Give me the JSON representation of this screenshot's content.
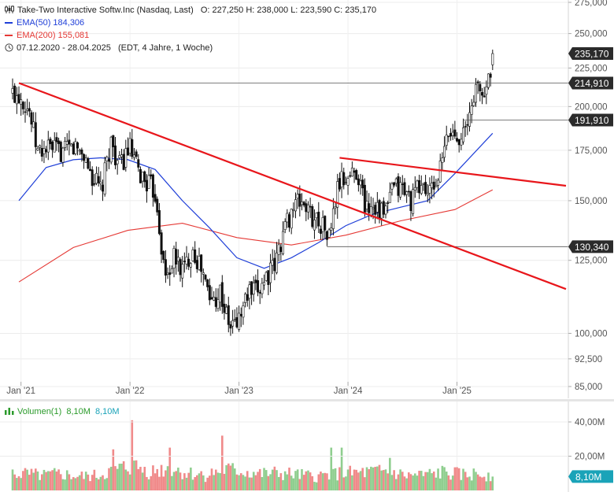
{
  "header": {
    "title": "Take-Two Interactive Softw.Inc (Nasdaq, Last)",
    "ohlc": "O: 227,250   H: 238,000   L: 223,590   C: 235,170",
    "ema50_label": "EMA(50)",
    "ema50_value": "184,306",
    "ema200_label": "EMA(200)",
    "ema200_value": "155,081",
    "range": "07.12.2020 - 28.04.2025",
    "range_info": "(EDT, 4 Jahre, 1 Woche)"
  },
  "volume_header": {
    "label": "Volumen(1)",
    "value1": "8,10M",
    "value2": "8,10M"
  },
  "colors": {
    "ema50": "#1f3fd8",
    "ema200": "#e53935",
    "trendline": "#e8161b",
    "vol_up": "#8fce8f",
    "vol_down": "#f08a8a",
    "price_tag": "#2b2b2b",
    "volume_tag": "#1aa3b8",
    "volume_title": "#2a9a2a"
  },
  "chart_data": [
    {
      "type": "candlestick",
      "title": "Take-Two Interactive Softw.Inc (Nasdaq, Last)",
      "interval": "1 Woche",
      "scale": "log",
      "ylim": [
        82,
        280
      ],
      "x_ticks": [
        "Jan '21",
        "Jan '22",
        "Jan '23",
        "Jan '24",
        "Jan '25"
      ],
      "y_ticks": [
        "275,000",
        "250,000",
        "225,000",
        "200,000",
        "175,000",
        "150,000",
        "125,000",
        "100,000",
        "92,500",
        "85,000"
      ],
      "y_tick_values": [
        275,
        250,
        225,
        200,
        175,
        150,
        125,
        100,
        92.5,
        85
      ],
      "last": {
        "open": 227.25,
        "high": 238.0,
        "low": 223.59,
        "close": 235.17
      },
      "price_tags": [
        {
          "label": "235,170",
          "value": 235.17
        },
        {
          "label": "214,910",
          "value": 214.91
        },
        {
          "label": "191,910",
          "value": 191.91
        },
        {
          "label": "130,340",
          "value": 130.34
        }
      ],
      "horizontal_levels": [
        {
          "value": 214.91,
          "from": "2020-12-28"
        },
        {
          "value": 191.91,
          "from": "2025-01-20"
        },
        {
          "value": 130.34,
          "from": "2023-10-23"
        }
      ],
      "trendlines": [
        {
          "from": {
            "date": "2020-12-28",
            "value": 214.9
          },
          "to": {
            "date": "2025-12-29",
            "value": 114.5
          }
        },
        {
          "from": {
            "date": "2023-12-04",
            "value": 171.0
          },
          "to": {
            "date": "2025-12-29",
            "value": 157.0
          }
        }
      ],
      "monthly_closes": [
        {
          "date": "2020-12-31",
          "value": 208
        },
        {
          "date": "2021-01-31",
          "value": 198
        },
        {
          "date": "2021-02-28",
          "value": 174
        },
        {
          "date": "2021-03-31",
          "value": 176
        },
        {
          "date": "2021-04-30",
          "value": 175
        },
        {
          "date": "2021-05-31",
          "value": 174
        },
        {
          "date": "2021-06-30",
          "value": 177
        },
        {
          "date": "2021-07-31",
          "value": 173
        },
        {
          "date": "2021-08-31",
          "value": 161
        },
        {
          "date": "2021-09-30",
          "value": 154
        },
        {
          "date": "2021-10-31",
          "value": 180
        },
        {
          "date": "2021-11-30",
          "value": 166
        },
        {
          "date": "2021-12-31",
          "value": 177
        },
        {
          "date": "2022-01-31",
          "value": 163
        },
        {
          "date": "2022-02-28",
          "value": 159
        },
        {
          "date": "2022-03-31",
          "value": 153
        },
        {
          "date": "2022-04-30",
          "value": 118
        },
        {
          "date": "2022-05-31",
          "value": 126
        },
        {
          "date": "2022-06-30",
          "value": 121
        },
        {
          "date": "2022-07-31",
          "value": 130
        },
        {
          "date": "2022-08-31",
          "value": 121
        },
        {
          "date": "2022-09-30",
          "value": 110
        },
        {
          "date": "2022-10-31",
          "value": 114
        },
        {
          "date": "2022-11-30",
          "value": 102
        },
        {
          "date": "2022-12-31",
          "value": 104
        },
        {
          "date": "2023-01-31",
          "value": 113
        },
        {
          "date": "2023-02-28",
          "value": 113
        },
        {
          "date": "2023-03-31",
          "value": 119
        },
        {
          "date": "2023-04-30",
          "value": 122
        },
        {
          "date": "2023-05-31",
          "value": 137
        },
        {
          "date": "2023-06-30",
          "value": 147
        },
        {
          "date": "2023-07-31",
          "value": 150
        },
        {
          "date": "2023-08-31",
          "value": 143
        },
        {
          "date": "2023-09-30",
          "value": 141
        },
        {
          "date": "2023-10-31",
          "value": 134
        },
        {
          "date": "2023-11-30",
          "value": 158
        },
        {
          "date": "2023-12-31",
          "value": 161
        },
        {
          "date": "2024-01-31",
          "value": 165
        },
        {
          "date": "2024-02-29",
          "value": 147
        },
        {
          "date": "2024-03-31",
          "value": 149
        },
        {
          "date": "2024-04-30",
          "value": 143
        },
        {
          "date": "2024-05-31",
          "value": 156
        },
        {
          "date": "2024-06-30",
          "value": 156
        },
        {
          "date": "2024-07-31",
          "value": 150
        },
        {
          "date": "2024-08-31",
          "value": 158
        },
        {
          "date": "2024-09-30",
          "value": 153
        },
        {
          "date": "2024-10-31",
          "value": 162
        },
        {
          "date": "2024-11-30",
          "value": 184
        },
        {
          "date": "2024-12-31",
          "value": 184
        },
        {
          "date": "2025-01-31",
          "value": 185
        },
        {
          "date": "2025-02-28",
          "value": 212
        },
        {
          "date": "2025-03-31",
          "value": 207
        },
        {
          "date": "2025-04-30",
          "value": 235.17
        }
      ],
      "series": [
        {
          "name": "EMA(50)",
          "points": [
            {
              "date": "2020-12-28",
              "value": 150
            },
            {
              "date": "2021-03-29",
              "value": 166
            },
            {
              "date": "2021-06-28",
              "value": 170
            },
            {
              "date": "2021-09-27",
              "value": 171
            },
            {
              "date": "2021-12-27",
              "value": 170
            },
            {
              "date": "2022-03-28",
              "value": 165
            },
            {
              "date": "2022-06-27",
              "value": 150
            },
            {
              "date": "2022-09-26",
              "value": 138
            },
            {
              "date": "2022-12-26",
              "value": 126
            },
            {
              "date": "2023-03-27",
              "value": 122
            },
            {
              "date": "2023-06-26",
              "value": 126
            },
            {
              "date": "2023-09-25",
              "value": 132
            },
            {
              "date": "2023-12-25",
              "value": 139
            },
            {
              "date": "2024-03-25",
              "value": 144
            },
            {
              "date": "2024-06-24",
              "value": 147
            },
            {
              "date": "2024-09-23",
              "value": 150
            },
            {
              "date": "2024-12-23",
              "value": 163
            },
            {
              "date": "2025-04-28",
              "value": 184.306
            }
          ]
        },
        {
          "name": "EMA(200)",
          "points": [
            {
              "date": "2020-12-28",
              "value": 117
            },
            {
              "date": "2021-06-28",
              "value": 130
            },
            {
              "date": "2021-12-27",
              "value": 137
            },
            {
              "date": "2022-06-27",
              "value": 140
            },
            {
              "date": "2022-12-26",
              "value": 134
            },
            {
              "date": "2023-06-26",
              "value": 131
            },
            {
              "date": "2023-12-25",
              "value": 135
            },
            {
              "date": "2024-06-24",
              "value": 141
            },
            {
              "date": "2024-12-23",
              "value": 146
            },
            {
              "date": "2025-04-28",
              "value": 155.081
            }
          ]
        }
      ]
    },
    {
      "type": "bar",
      "title": "Volumen(1)",
      "y_ticks": [
        "40,00M",
        "20,00M"
      ],
      "y_tick_values": [
        40,
        20
      ],
      "ylim": [
        0,
        48
      ],
      "last_label": "8,10M",
      "last_value": 8.1,
      "monthly_average_volume_millions": [
        {
          "date": "2021-01",
          "value": 9.5
        },
        {
          "date": "2021-03",
          "value": 8.5
        },
        {
          "date": "2021-05",
          "value": 9.5
        },
        {
          "date": "2021-07",
          "value": 8.0
        },
        {
          "date": "2021-09",
          "value": 8.5
        },
        {
          "date": "2021-11",
          "value": 12.0
        },
        {
          "date": "2022-01",
          "value": 14.0
        },
        {
          "date": "2022-03",
          "value": 11.0
        },
        {
          "date": "2022-05",
          "value": 13.0
        },
        {
          "date": "2022-07",
          "value": 10.0
        },
        {
          "date": "2022-09",
          "value": 9.0
        },
        {
          "date": "2022-11",
          "value": 12.0
        },
        {
          "date": "2023-01",
          "value": 11.0
        },
        {
          "date": "2023-03",
          "value": 9.5
        },
        {
          "date": "2023-05",
          "value": 10.0
        },
        {
          "date": "2023-07",
          "value": 9.0
        },
        {
          "date": "2023-09",
          "value": 8.0
        },
        {
          "date": "2023-11",
          "value": 9.5
        },
        {
          "date": "2024-01",
          "value": 10.0
        },
        {
          "date": "2024-03",
          "value": 10.5
        },
        {
          "date": "2024-05",
          "value": 11.0
        },
        {
          "date": "2024-07",
          "value": 8.5
        },
        {
          "date": "2024-09",
          "value": 9.0
        },
        {
          "date": "2024-11",
          "value": 10.5
        },
        {
          "date": "2025-01",
          "value": 9.0
        },
        {
          "date": "2025-03",
          "value": 9.5
        }
      ],
      "peaks_millions": [
        {
          "date": "2022-01-10",
          "value": 41
        },
        {
          "date": "2021-11-08",
          "value": 24
        },
        {
          "date": "2022-05-16",
          "value": 25
        },
        {
          "date": "2022-11-07",
          "value": 32
        },
        {
          "date": "2023-11-06",
          "value": 25
        },
        {
          "date": "2023-12-11",
          "value": 25
        },
        {
          "date": "2024-05-20",
          "value": 19
        }
      ]
    }
  ]
}
